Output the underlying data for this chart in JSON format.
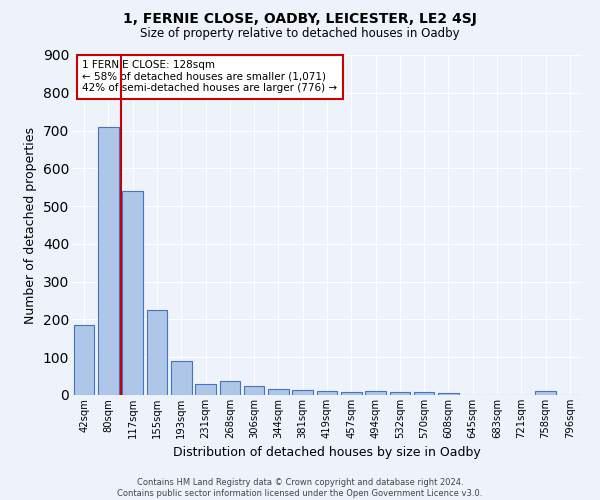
{
  "title": "1, FERNIE CLOSE, OADBY, LEICESTER, LE2 4SJ",
  "subtitle": "Size of property relative to detached houses in Oadby",
  "xlabel": "Distribution of detached houses by size in Oadby",
  "ylabel": "Number of detached properties",
  "footer_line1": "Contains HM Land Registry data © Crown copyright and database right 2024.",
  "footer_line2": "Contains public sector information licensed under the Open Government Licence v3.0.",
  "categories": [
    "42sqm",
    "80sqm",
    "117sqm",
    "155sqm",
    "193sqm",
    "231sqm",
    "268sqm",
    "306sqm",
    "344sqm",
    "381sqm",
    "419sqm",
    "457sqm",
    "494sqm",
    "532sqm",
    "570sqm",
    "608sqm",
    "645sqm",
    "683sqm",
    "721sqm",
    "758sqm",
    "796sqm"
  ],
  "values": [
    185,
    710,
    540,
    225,
    90,
    28,
    38,
    25,
    15,
    12,
    10,
    9,
    10,
    9,
    7,
    6,
    0,
    0,
    0,
    10,
    0
  ],
  "bar_color": "#aec6e8",
  "bar_edge_color": "#4472c4",
  "bg_color": "#eef3fb",
  "grid_color": "#ffffff",
  "marker_line_x": "117sqm",
  "marker_line_color": "#cc0000",
  "annotation_title": "1 FERNIE CLOSE: 128sqm",
  "annotation_line1": "← 58% of detached houses are smaller (1,071)",
  "annotation_line2": "42% of semi-detached houses are larger (776) →",
  "annotation_box_color": "#ffffff",
  "annotation_box_edge": "#cc0000",
  "ylim": [
    0,
    900
  ],
  "yticks": [
    0,
    100,
    200,
    300,
    400,
    500,
    600,
    700,
    800,
    900
  ]
}
